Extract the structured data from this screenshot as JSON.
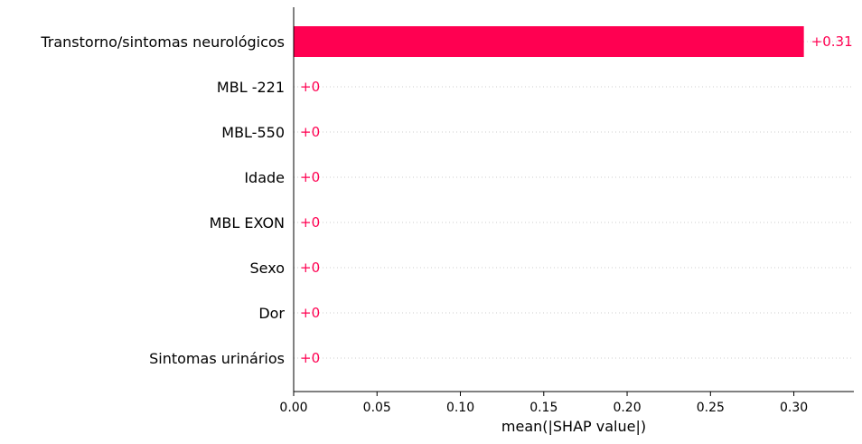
{
  "chart_data": {
    "type": "bar",
    "orientation": "horizontal",
    "categories": [
      "Transtorno/sintomas neurológicos",
      "MBL -221",
      "MBL-550",
      "Idade",
      "MBL EXON",
      "Sexo",
      "Dor",
      "Sintomas urinários"
    ],
    "values": [
      0.306,
      0,
      0,
      0,
      0,
      0,
      0,
      0
    ],
    "value_labels": [
      "+0.31",
      "+0",
      "+0",
      "+0",
      "+0",
      "+0",
      "+0",
      "+0"
    ],
    "xlabel": "mean(|SHAP value|)",
    "ylabel": "",
    "xlim": [
      0,
      0.336
    ],
    "xticks": [
      0.0,
      0.05,
      0.1,
      0.15,
      0.2,
      0.25,
      0.3
    ],
    "xtick_labels": [
      "0.00",
      "0.05",
      "0.10",
      "0.15",
      "0.20",
      "0.25",
      "0.30"
    ],
    "grid": "dotted horizontal guide lines for bars",
    "colors": {
      "bar": "#ff0051",
      "label": "#ff0051",
      "guide": "#cccccc"
    }
  }
}
